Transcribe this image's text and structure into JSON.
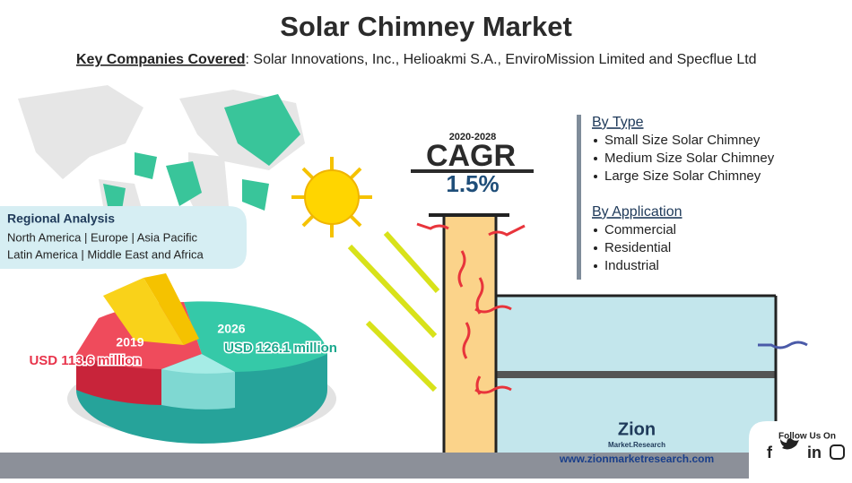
{
  "title": "Solar Chimney Market",
  "key_companies": {
    "label": "Key Companies Covered",
    "text": ": Solar Innovations, Inc., Helioakmi S.A., EnviroMission Limited and Specflue Ltd"
  },
  "cagr": {
    "period": "2020-2028",
    "label": "CAGR",
    "value": "1.5%"
  },
  "regional": {
    "title": "Regional Analysis",
    "lines": [
      "North America | Europe | Asia Pacific",
      "Latin America | Middle East and Africa"
    ]
  },
  "market": {
    "year_start": "2019",
    "value_start": "USD 113.6 million",
    "year_end": "2026",
    "value_end": "USD 126.1 million"
  },
  "segments": [
    {
      "title": "By Type",
      "items": [
        "Small Size Solar Chimney",
        "Medium Size Solar Chimney",
        "Large Size Solar Chimney"
      ]
    },
    {
      "title": "By Application",
      "items": [
        "Commercial",
        "Residential",
        "Industrial"
      ]
    }
  ],
  "footer": {
    "logo": "Zion",
    "logo_sub": "Market.Research",
    "follow": "Follow Us On",
    "website": "www.zionmarketresearch.com"
  }
}
